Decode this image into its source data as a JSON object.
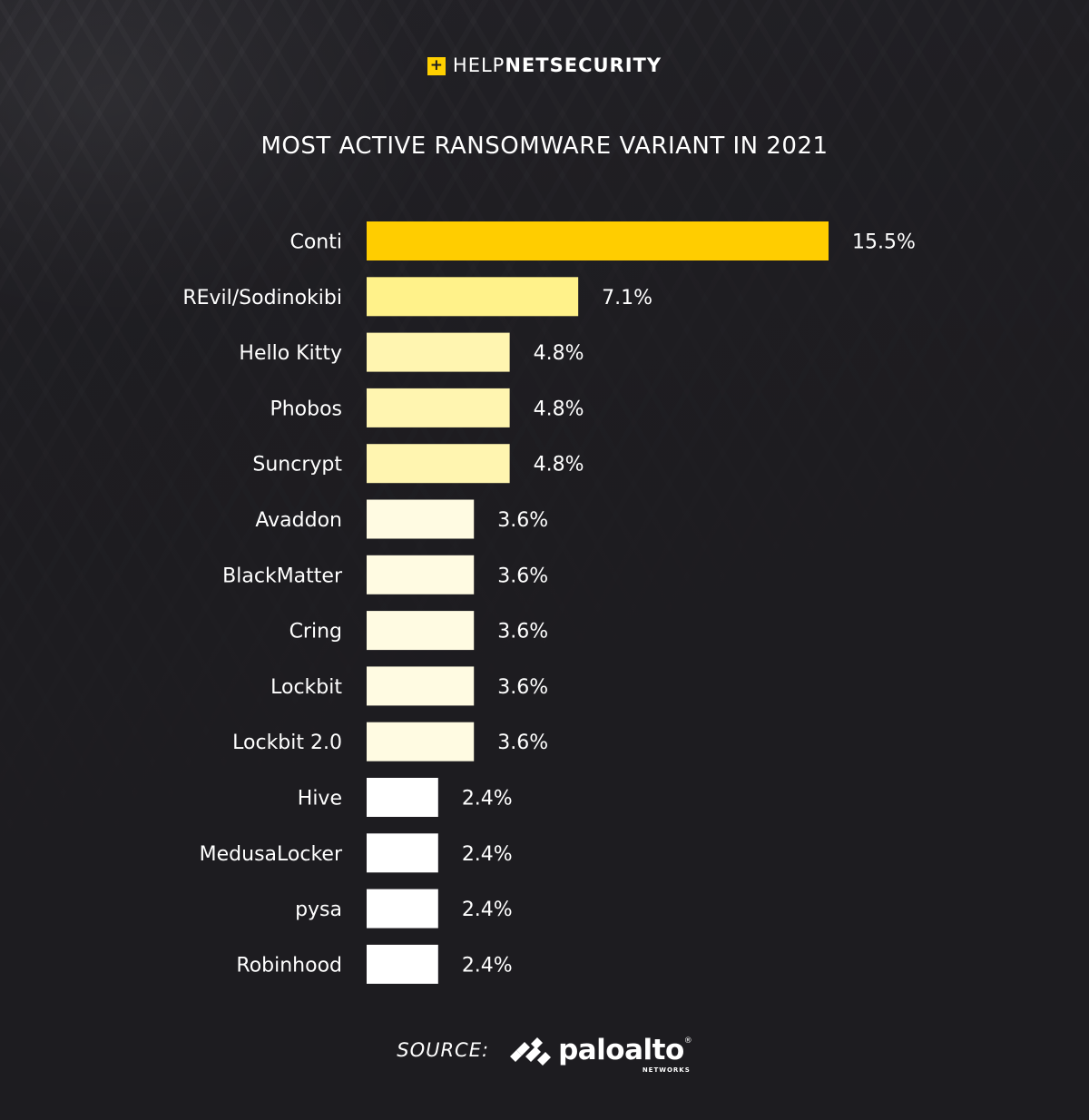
{
  "header": {
    "brand_light": "HELP",
    "brand_mid": "NET",
    "brand_bold": "SECURITY",
    "plus_glyph": "+",
    "accent_color": "#ffd000"
  },
  "chart_data": {
    "type": "bar",
    "orientation": "horizontal",
    "title": "MOST ACTIVE RANSOMWARE VARIANT IN 2021",
    "categories": [
      "Conti",
      "REvil/Sodinokibi",
      "Hello Kitty",
      "Phobos",
      "Suncrypt",
      "Avaddon",
      "BlackMatter",
      "Cring",
      "Lockbit",
      "Lockbit 2.0",
      "Hive",
      "MedusaLocker",
      "pysa",
      "Robinhood"
    ],
    "values": [
      15.5,
      7.1,
      4.8,
      4.8,
      4.8,
      3.6,
      3.6,
      3.6,
      3.6,
      3.6,
      2.4,
      2.4,
      2.4,
      2.4
    ],
    "value_labels": [
      "15.5%",
      "7.1%",
      "4.8%",
      "4.8%",
      "4.8%",
      "3.6%",
      "3.6%",
      "3.6%",
      "3.6%",
      "3.6%",
      "2.4%",
      "2.4%",
      "2.4%",
      "2.4%"
    ],
    "colors": [
      "#ffcd00",
      "#fff28a",
      "#fff5b0",
      "#fff5b0",
      "#fff5b0",
      "#fffbe2",
      "#fffbe2",
      "#fffbe2",
      "#fffbe2",
      "#fffbe2",
      "#ffffff",
      "#ffffff",
      "#ffffff",
      "#ffffff"
    ],
    "xlim": [
      0,
      15.5
    ],
    "grid": false,
    "legend": "none",
    "xlabel": "",
    "ylabel": ""
  },
  "footer": {
    "source_label": "SOURCE:",
    "logo_word": "paloalto",
    "logo_reg": "®",
    "logo_sub": "NETWORKS"
  }
}
